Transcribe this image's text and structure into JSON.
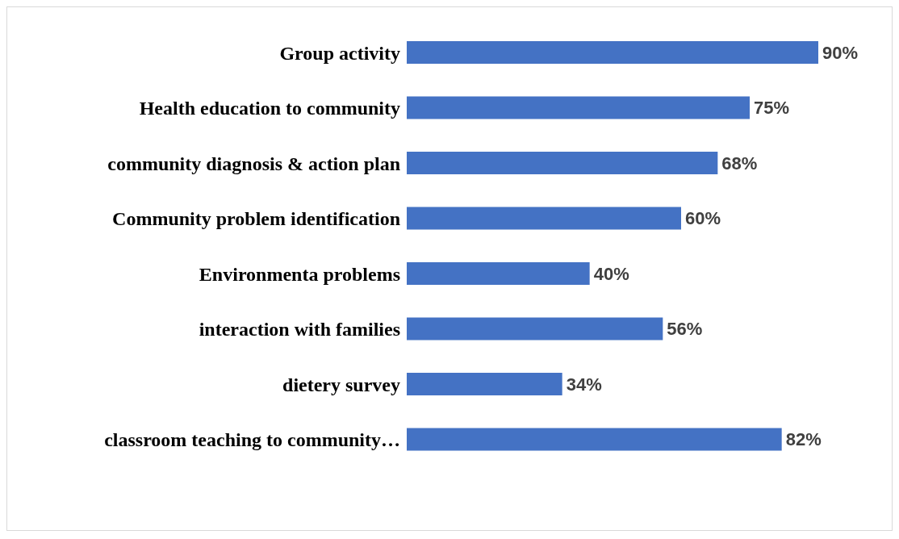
{
  "chart_data": {
    "type": "bar",
    "orientation": "horizontal",
    "categories": [
      "Group activity",
      "Health education to community",
      "community diagnosis & action plan",
      "Community problem identification",
      "Environmenta problems",
      "interaction with families",
      "dietery survey",
      "classroom teaching to community…"
    ],
    "values": [
      90,
      75,
      68,
      60,
      40,
      56,
      34,
      82
    ],
    "value_labels": [
      "90%",
      "75%",
      "68%",
      "60%",
      "40%",
      "56%",
      "34%",
      "82%"
    ],
    "color": "#4472c4"
  }
}
